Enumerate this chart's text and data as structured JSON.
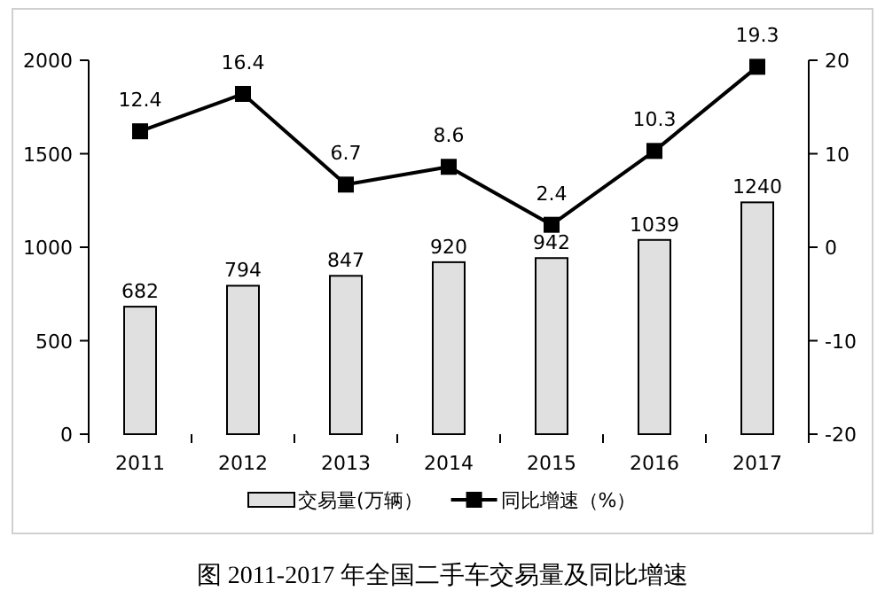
{
  "chart_data": {
    "type": "bar",
    "categories": [
      "2011",
      "2012",
      "2013",
      "2014",
      "2015",
      "2016",
      "2017"
    ],
    "series": [
      {
        "name": "交易量(万辆）",
        "color": "#e0e0e0",
        "values": [
          682,
          794,
          847,
          920,
          942,
          1039,
          1240
        ]
      },
      {
        "name": "同比增速（%）",
        "type": "line",
        "axis": "y2",
        "color": "#000000",
        "values": [
          12.4,
          16.4,
          6.7,
          8.6,
          2.4,
          10.3,
          19.3
        ]
      }
    ],
    "ylim": [
      0,
      2000
    ],
    "yticks": [
      0,
      500,
      1000,
      1500,
      2000
    ],
    "y2lim": [
      -20,
      20
    ],
    "y2ticks": [
      -20,
      -10,
      0,
      10,
      20
    ],
    "marker": "square",
    "data_labels": true,
    "legend": "bottom",
    "grid": false,
    "annotations": [
      "图  2011-2017 年全国二手车交易量及同比增速"
    ]
  }
}
